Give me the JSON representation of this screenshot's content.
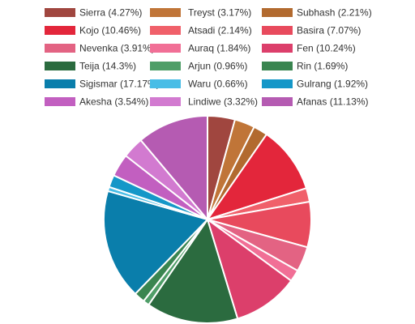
{
  "chart_data": {
    "type": "pie",
    "legend_position": "top",
    "slices": [
      {
        "label": "Sierra (4.27%)",
        "value": 4.27,
        "color": "#a0463f"
      },
      {
        "label": "Treyst (3.17%)",
        "value": 3.17,
        "color": "#c07538"
      },
      {
        "label": "Subhash (2.21%)",
        "value": 2.21,
        "color": "#b26a2f"
      },
      {
        "label": "Kojo (10.46%)",
        "value": 10.46,
        "color": "#e3263b"
      },
      {
        "label": "Atsadi (2.14%)",
        "value": 2.14,
        "color": "#f0606a"
      },
      {
        "label": "Basira (7.07%)",
        "value": 7.07,
        "color": "#e84a5d"
      },
      {
        "label": "Nevenka (3.91%)",
        "value": 3.91,
        "color": "#e36383"
      },
      {
        "label": "Auraq (1.84%)",
        "value": 1.84,
        "color": "#f16f96"
      },
      {
        "label": "Fen (10.24%)",
        "value": 10.24,
        "color": "#dc3f6b"
      },
      {
        "label": "Teija (14.3%)",
        "value": 14.3,
        "color": "#2b6b3f"
      },
      {
        "label": "Arjun (0.96%)",
        "value": 0.96,
        "color": "#4f9e68"
      },
      {
        "label": "Rin (1.69%)",
        "value": 1.69,
        "color": "#3a8550"
      },
      {
        "label": "Sigismar (17.17%)",
        "value": 17.17,
        "color": "#0a7eab"
      },
      {
        "label": "Waru (0.66%)",
        "value": 0.66,
        "color": "#48bde6"
      },
      {
        "label": "Gulrang (1.92%)",
        "value": 1.92,
        "color": "#1597c8"
      },
      {
        "label": "Akesha (3.54%)",
        "value": 3.54,
        "color": "#c25fc0"
      },
      {
        "label": "Lindiwe (3.32%)",
        "value": 3.32,
        "color": "#d27ad0"
      },
      {
        "label": "Afanas (11.13%)",
        "value": 11.13,
        "color": "#b55bb2"
      }
    ]
  }
}
